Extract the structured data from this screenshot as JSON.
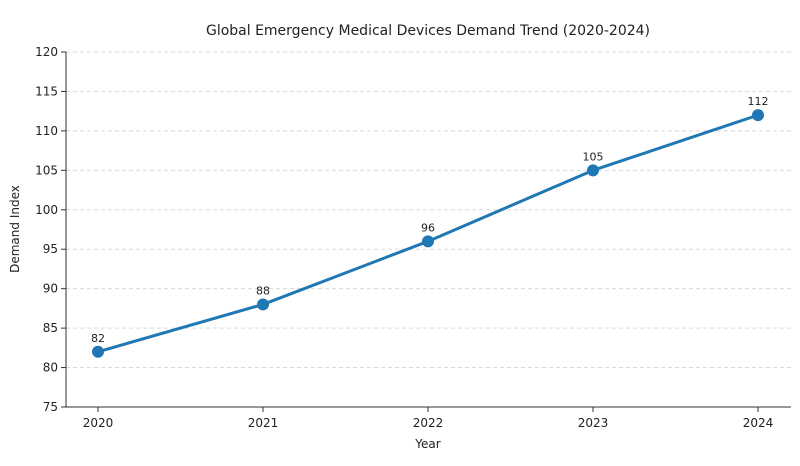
{
  "chart_data": {
    "type": "line",
    "title": "Global Emergency Medical Devices Demand Trend (2020-2024)",
    "xlabel": "Year",
    "ylabel": "Demand Index",
    "categories": [
      "2020",
      "2021",
      "2022",
      "2023",
      "2024"
    ],
    "series": [
      {
        "values": [
          82,
          88,
          96,
          105,
          112
        ]
      }
    ],
    "ylim": [
      75,
      120
    ],
    "yticks": [
      75,
      80,
      85,
      90,
      95,
      100,
      105,
      110,
      115,
      120
    ],
    "grid": "horizontal dashed",
    "legend": "none",
    "color": "#1f77b4"
  }
}
